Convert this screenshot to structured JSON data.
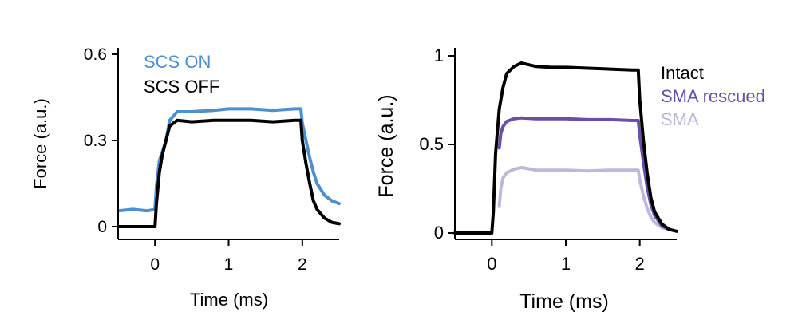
{
  "chart_data": [
    {
      "type": "line",
      "title": "",
      "xlabel": "Time (ms)",
      "ylabel": "Force (a.u.)",
      "xlim": [
        -0.5,
        2.5
      ],
      "ylim": [
        0,
        0.6
      ],
      "xticks": [
        0,
        1,
        2
      ],
      "xtick_labels": [
        "0",
        "1",
        "2"
      ],
      "yticks": [
        0,
        0.3,
        0.6
      ],
      "ytick_labels": [
        "0",
        "0.3",
        "0.6"
      ],
      "grid": false,
      "legend_placement": "top-left",
      "series": [
        {
          "name": "SCS ON",
          "color": "#4d8fcf",
          "x": [
            -0.5,
            -0.3,
            -0.1,
            0.0,
            0.02,
            0.06,
            0.1,
            0.15,
            0.2,
            0.3,
            0.5,
            0.8,
            1.0,
            1.3,
            1.6,
            1.9,
            1.98,
            2.0,
            2.05,
            2.1,
            2.15,
            2.2,
            2.3,
            2.4,
            2.5
          ],
          "y": [
            0.055,
            0.06,
            0.055,
            0.06,
            0.14,
            0.23,
            0.26,
            0.3,
            0.37,
            0.4,
            0.4,
            0.405,
            0.41,
            0.41,
            0.405,
            0.41,
            0.41,
            0.36,
            0.3,
            0.24,
            0.19,
            0.15,
            0.11,
            0.09,
            0.08
          ]
        },
        {
          "name": "SCS OFF",
          "color": "#000000",
          "x": [
            -0.5,
            -0.2,
            0.0,
            0.02,
            0.06,
            0.1,
            0.15,
            0.2,
            0.3,
            0.5,
            0.8,
            1.0,
            1.3,
            1.6,
            1.9,
            1.98,
            2.0,
            2.05,
            2.1,
            2.15,
            2.2,
            2.3,
            2.4,
            2.5
          ],
          "y": [
            0.0,
            0.0,
            0.0,
            0.08,
            0.19,
            0.25,
            0.3,
            0.35,
            0.37,
            0.365,
            0.37,
            0.37,
            0.37,
            0.365,
            0.37,
            0.37,
            0.3,
            0.22,
            0.15,
            0.09,
            0.06,
            0.03,
            0.015,
            0.01
          ]
        }
      ]
    },
    {
      "type": "line",
      "title": "",
      "xlabel": "Time (ms)",
      "ylabel": "Force (a.u.)",
      "xlim": [
        -0.5,
        2.5
      ],
      "ylim": [
        0,
        1.0
      ],
      "xticks": [
        0,
        1,
        2
      ],
      "xtick_labels": [
        "0",
        "1",
        "2"
      ],
      "yticks": [
        0,
        0.5,
        1
      ],
      "ytick_labels": [
        "0",
        "0.5",
        "1"
      ],
      "grid": false,
      "legend_placement": "top-right",
      "series": [
        {
          "name": "SMA",
          "color": "#bfb8dc",
          "x": [
            0.1,
            0.12,
            0.15,
            0.2,
            0.3,
            0.4,
            0.6,
            0.8,
            1.0,
            1.3,
            1.6,
            1.9,
            1.98,
            2.0,
            2.05,
            2.1,
            2.15,
            2.2,
            2.3,
            2.4
          ],
          "y": [
            0.15,
            0.25,
            0.31,
            0.34,
            0.36,
            0.37,
            0.355,
            0.355,
            0.355,
            0.35,
            0.355,
            0.355,
            0.355,
            0.3,
            0.21,
            0.14,
            0.09,
            0.06,
            0.03,
            0.02
          ]
        },
        {
          "name": "SMA rescued",
          "color": "#6a4fa8",
          "x": [
            0.1,
            0.12,
            0.15,
            0.2,
            0.3,
            0.4,
            0.6,
            0.8,
            1.0,
            1.3,
            1.6,
            1.9,
            1.98,
            2.0,
            2.05,
            2.1,
            2.15,
            2.2,
            2.3,
            2.4
          ],
          "y": [
            0.48,
            0.56,
            0.6,
            0.63,
            0.645,
            0.65,
            0.645,
            0.645,
            0.645,
            0.64,
            0.64,
            0.635,
            0.635,
            0.55,
            0.4,
            0.26,
            0.16,
            0.1,
            0.04,
            0.02
          ]
        },
        {
          "name": "Intact",
          "color": "#000000",
          "x": [
            -0.5,
            -0.2,
            0.0,
            0.02,
            0.05,
            0.1,
            0.15,
            0.2,
            0.3,
            0.4,
            0.6,
            0.8,
            1.0,
            1.3,
            1.6,
            1.9,
            1.98,
            2.0,
            2.05,
            2.1,
            2.15,
            2.2,
            2.3,
            2.4,
            2.5
          ],
          "y": [
            0.0,
            0.0,
            0.0,
            0.12,
            0.45,
            0.7,
            0.82,
            0.9,
            0.94,
            0.96,
            0.94,
            0.935,
            0.935,
            0.93,
            0.925,
            0.92,
            0.92,
            0.75,
            0.52,
            0.34,
            0.2,
            0.12,
            0.05,
            0.02,
            0.01
          ]
        }
      ]
    }
  ]
}
